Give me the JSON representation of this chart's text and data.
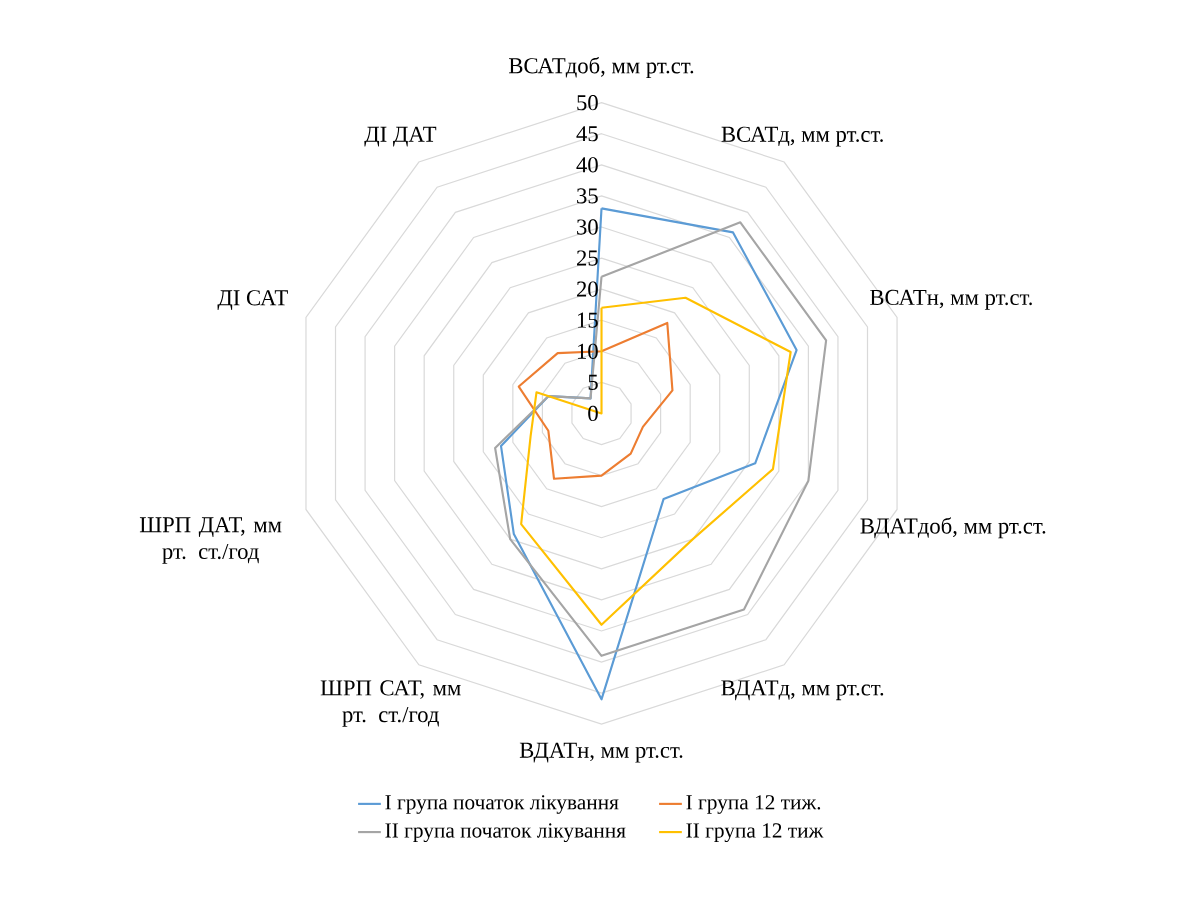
{
  "chart_data": {
    "type": "radar",
    "categories": [
      "ВСАТдоб, мм рт.ст.",
      "ВСАТд, мм рт.ст.",
      "ВСАТн, мм рт.ст.",
      "ВДАТдоб, мм рт.ст.",
      "ВДАТд, мм рт.ст.",
      "ВДАТн, мм рт.ст.",
      "ШРП САТ, мм рт. ст./год",
      "ШРП ДАТ, мм рт. ст./год",
      "ДІ САТ",
      "ДІ ДАТ"
    ],
    "series": [
      {
        "name": "І група початок лікування",
        "color": "#5b9bd5",
        "values": [
          33,
          36,
          33,
          26,
          17,
          46,
          24,
          17,
          9,
          3
        ]
      },
      {
        "name": "І група 12 тиж.",
        "color": "#ed7d31",
        "values": [
          10,
          18,
          12,
          7,
          8,
          10,
          13,
          9,
          14,
          12
        ]
      },
      {
        "name": "ІІ група початок лікування",
        "color": "#a5a5a5",
        "values": [
          22,
          38,
          38,
          35,
          39,
          39,
          25,
          18,
          9,
          3
        ]
      },
      {
        "name": "ІІ група 12 тиж",
        "color": "#ffc000",
        "values": [
          17,
          23,
          32,
          29,
          25,
          34,
          22,
          12,
          11,
          0
        ]
      }
    ],
    "ylim": [
      0,
      50
    ],
    "yticks": [
      0,
      5,
      10,
      15,
      20,
      25,
      30,
      35,
      40,
      45,
      50
    ],
    "grid": true,
    "legend": "bottom"
  }
}
